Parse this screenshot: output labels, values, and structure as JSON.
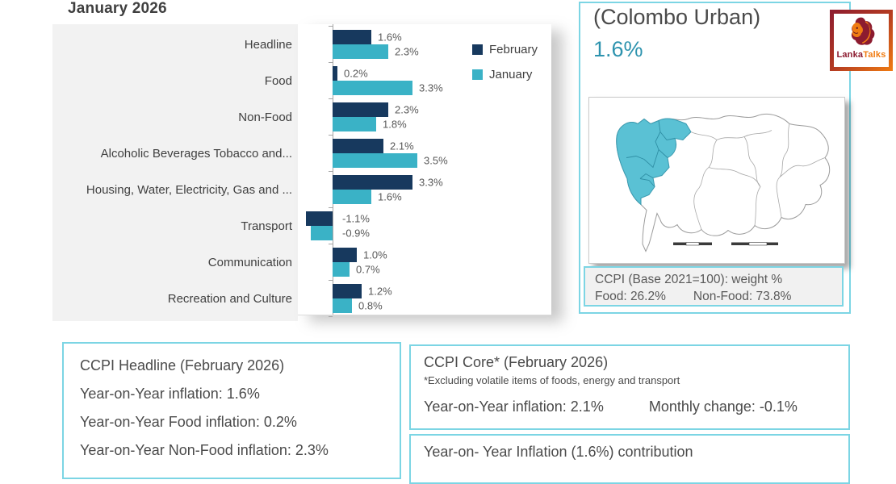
{
  "title": "January 2026",
  "chart_data": {
    "type": "bar",
    "orientation": "horizontal",
    "title": "January 2026",
    "unit": "percent",
    "categories": [
      "Headline",
      "Food",
      "Non-Food",
      "Alcoholic Beverages Tobacco and...",
      "Housing, Water, Electricity, Gas and ...",
      "Transport",
      "Communication",
      "Recreation and Culture"
    ],
    "series": [
      {
        "name": "February",
        "color": "#17395e",
        "values": [
          1.6,
          0.2,
          2.3,
          2.1,
          3.3,
          -1.1,
          1.0,
          1.2
        ]
      },
      {
        "name": "January",
        "color": "#3ab2c6",
        "values": [
          2.3,
          3.3,
          1.8,
          3.5,
          1.6,
          -0.9,
          0.7,
          0.8
        ]
      }
    ],
    "legend_position": "top-right",
    "grid": false,
    "value_labels_shown": true
  },
  "right_panel": {
    "title": "(Colombo Urban)",
    "headline_value": "1.6%",
    "map": {
      "description": "district map with Colombo urban region highlighted",
      "highlight_color": "#5ac1d4"
    },
    "weight_box": {
      "line1": "CCPI (Base 2021=100): weight %",
      "food": "Food: 26.2%",
      "non_food": "Non-Food: 73.8%"
    }
  },
  "logo": {
    "name_part1": "Lanka",
    "name_part2": "Talks"
  },
  "headline_box": {
    "title": "CCPI Headline (February 2026)",
    "line1": "Year-on-Year inflation: 1.6%",
    "line2": "Year-on-Year Food inflation: 0.2%",
    "line3": "Year-on-Year Non-Food inflation: 2.3%"
  },
  "core_box": {
    "title": "CCPI Core* (February 2026)",
    "note": "*Excluding volatile items of foods, energy and transport",
    "yoy": "Year-on-Year inflation: 2.1%",
    "monthly": "Monthly change:  -0.1%"
  },
  "contribution_box": {
    "title": "Year-on- Year Inflation (1.6%) contribution"
  },
  "colors": {
    "accent_border": "#7cd5e4",
    "february_bar": "#17395e",
    "january_bar": "#3ab2c6",
    "headline_value_text": "#2d93ae",
    "chart_label_bg": "#f2f2f2"
  }
}
